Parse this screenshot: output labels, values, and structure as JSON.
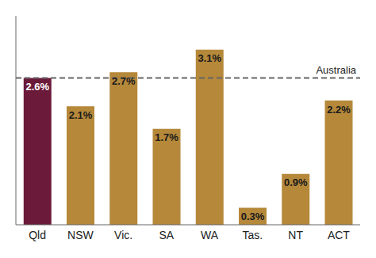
{
  "chart_data": {
    "type": "bar",
    "categories": [
      "Qld",
      "NSW",
      "Vic.",
      "SA",
      "WA",
      "Tas.",
      "NT",
      "ACT"
    ],
    "values": [
      2.6,
      2.1,
      2.7,
      1.7,
      3.1,
      0.3,
      0.9,
      2.2
    ],
    "value_labels": [
      "2.6%",
      "2.1%",
      "2.7%",
      "1.7%",
      "3.1%",
      "0.3%",
      "0.9%",
      "2.2%"
    ],
    "data_labels": true,
    "colors": [
      "#6b1a3a",
      "#b5883a",
      "#b5883a",
      "#b5883a",
      "#b5883a",
      "#b5883a",
      "#b5883a",
      "#b5883a"
    ],
    "ylim": [
      0,
      3.7
    ],
    "tick_labels": "x",
    "grid": false,
    "reference_lines": [
      {
        "y": 2.6,
        "label": "Australia",
        "color": "#666666",
        "line_style": "dashed"
      }
    ]
  }
}
